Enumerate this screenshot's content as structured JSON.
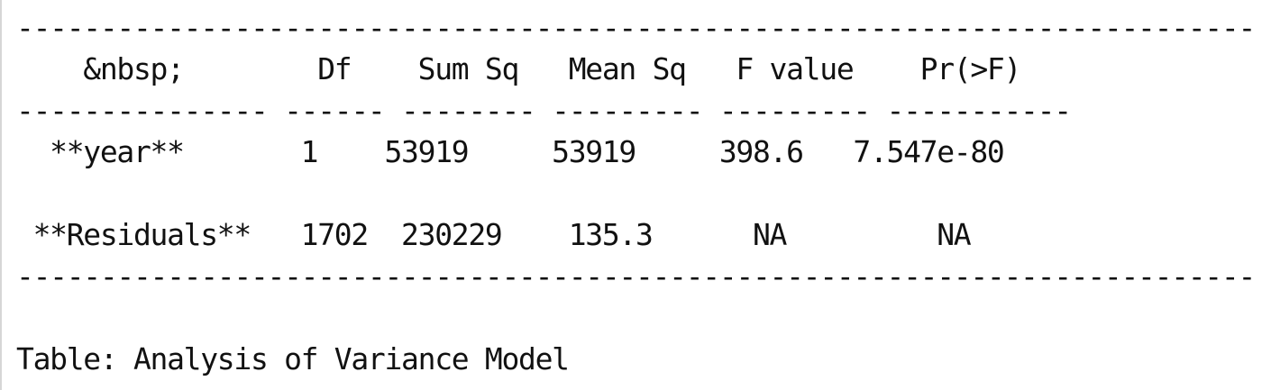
{
  "table": {
    "top_rule": "--------------------------------------------------------------------------",
    "header_line": "    &nbsp;        Df    Sum Sq   Mean Sq   F value    Pr(>F)",
    "header_rule": "--------------- ------ -------- --------- --------- -----------",
    "row_year": "  **year**       1    53919     53919     398.6   7.547e-80",
    "row_residuals": " **Residuals**   1702  230229    135.3      NA         NA",
    "bottom_rule": "--------------------------------------------------------------------------",
    "caption": "Table: Analysis of Variance Model"
  }
}
